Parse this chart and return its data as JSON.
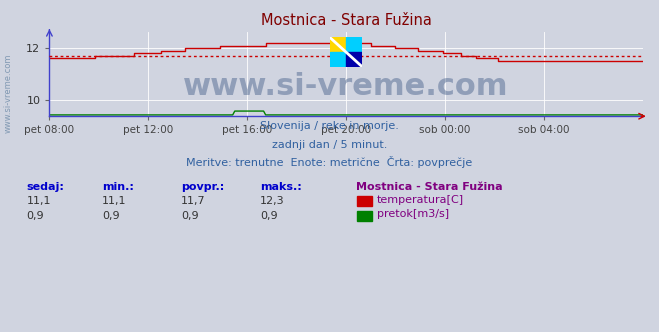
{
  "title": "Mostnica - Stara Fužina",
  "title_color": "#800000",
  "bg_color": "#d0d4e0",
  "plot_bg_color": "#d0d4e0",
  "grid_color": "#ffffff",
  "watermark_text": "www.si-vreme.com",
  "watermark_color": "#1a3a6e",
  "subtitle_lines": [
    "Slovenija / reke in morje.",
    "zadnji dan / 5 minut.",
    "Meritve: trenutne  Enote: metrične  Črta: povprečje"
  ],
  "subtitle_color": "#3060a0",
  "x_tick_labels": [
    "pet 08:00",
    "pet 12:00",
    "pet 16:00",
    "pet 20:00",
    "sob 00:00",
    "sob 04:00"
  ],
  "x_tick_positions": [
    0,
    48,
    96,
    144,
    192,
    240
  ],
  "n_points": 289,
  "temp_color": "#cc0000",
  "flow_color": "#008000",
  "avg_line_color": "#cc0000",
  "avg_value": 11.7,
  "temp_min": 11.1,
  "temp_max": 12.3,
  "temp_current": 11.1,
  "temp_avg": 11.7,
  "flow_min": 0.9,
  "flow_max": 0.9,
  "flow_current": 0.9,
  "flow_avg": 0.9,
  "ylim_min": 9.35,
  "ylim_max": 12.65,
  "y_ticks": [
    10,
    12
  ],
  "stat_labels": [
    "sedaj:",
    "min.:",
    "povpr.:",
    "maks.:"
  ],
  "stat_label_color": "#0000cc",
  "legend_title": "Mostnica - Stara Fužina",
  "legend_title_color": "#800080",
  "legend_items": [
    "temperatura[C]",
    "pretok[m3/s]"
  ],
  "legend_colors": [
    "#cc0000",
    "#008000"
  ],
  "left_label": "www.si-vreme.com",
  "left_label_color": "#6080a0",
  "spine_color": "#4040cc",
  "arrow_color": "#cc0000"
}
